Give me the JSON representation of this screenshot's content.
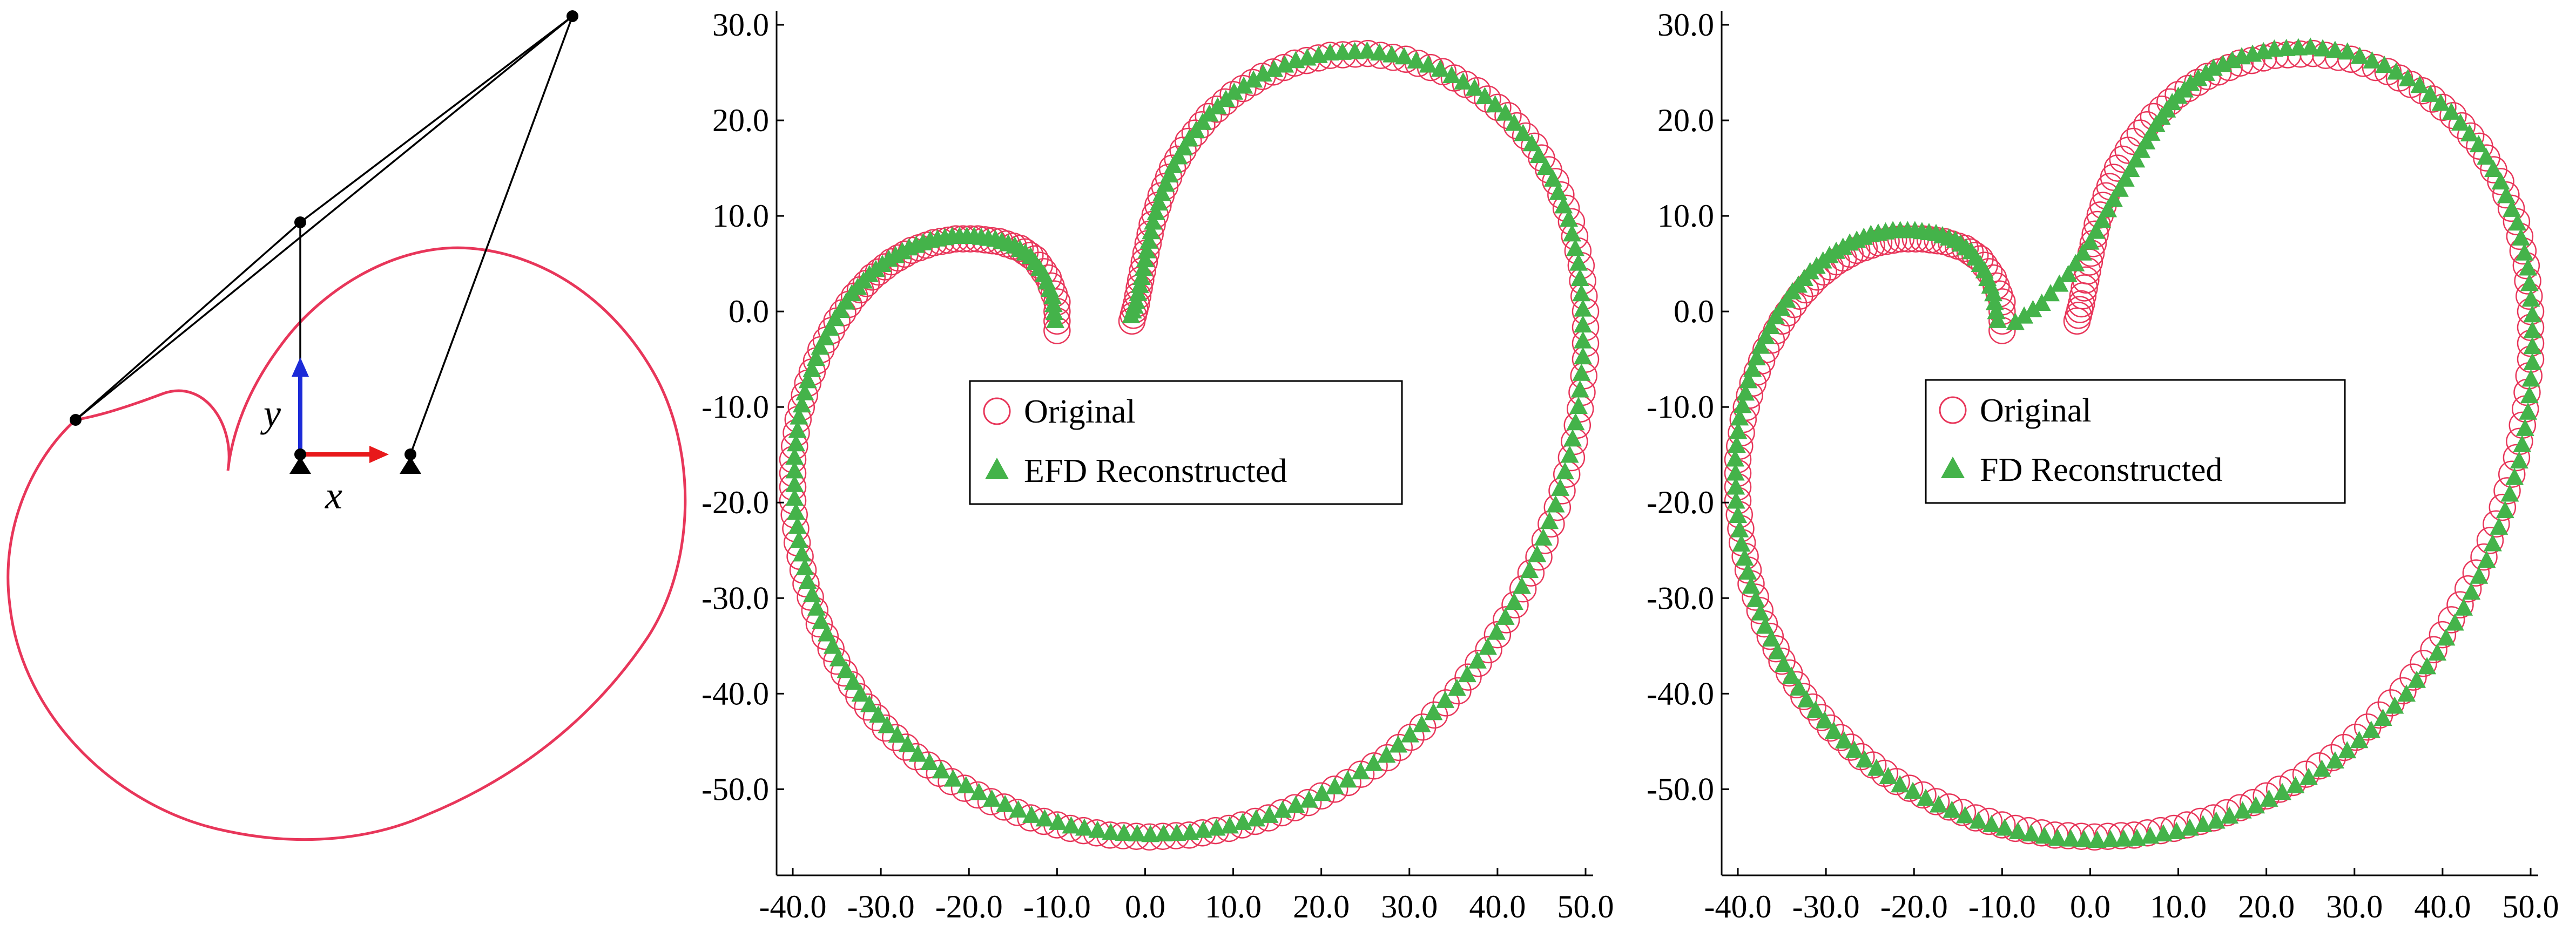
{
  "colors": {
    "original": "#e8365a",
    "reconstructed": "#44b34a",
    "axis": "#000000",
    "frame_x": "#e8191b",
    "frame_y": "#1c2bd8",
    "linkage": "#000000"
  },
  "mechanism": {
    "x_label": "x",
    "y_label": "y",
    "icons": [
      "ground-pivot-icon",
      "joint-icon",
      "coupler-point-icon"
    ]
  },
  "chart_data": [
    {
      "type": "scatter",
      "title": "",
      "xlabel": "",
      "ylabel": "",
      "xlim": [
        -40,
        50
      ],
      "ylim": [
        -58,
        30
      ],
      "xticks": [
        "-40.0",
        "-30.0",
        "-20.0",
        "-10.0",
        "0.0",
        "10.0",
        "20.0",
        "30.0",
        "40.0",
        "50.0"
      ],
      "yticks": [
        "30.0",
        "20.0",
        "10.0",
        "0.0",
        "-10.0",
        "-20.0",
        "-30.0",
        "-40.0",
        "-50.0"
      ],
      "legend_position": "center",
      "series": [
        {
          "name": "Original",
          "marker": "open-circle",
          "color": "#e8365a",
          "x": [
            -10.0,
            -10.0,
            -11.0,
            -12.5,
            -14.2,
            -16.5,
            -19.0,
            -21.5,
            -24.0,
            -26.5,
            -28.8,
            -31.0,
            -33.0,
            -35.0,
            -36.8,
            -38.3,
            -39.4,
            -40.0,
            -40.0,
            -39.5,
            -38.5,
            -37.0,
            -35.0,
            -32.5,
            -29.5,
            -26.0,
            -22.0,
            -17.5,
            -13.0,
            -8.5,
            -4.0,
            0.5,
            5.0,
            9.5,
            14.0,
            18.5,
            23.0,
            27.5,
            31.5,
            35.5,
            39.0,
            42.0,
            44.7,
            46.8,
            48.4,
            49.4,
            50.0,
            50.0,
            49.5,
            48.4,
            46.6,
            44.2,
            41.2,
            37.7,
            33.8,
            29.6,
            25.3,
            21.0,
            17.0,
            13.3,
            10.0,
            7.2,
            4.9,
            3.1,
            1.8,
            0.8,
            0.1,
            -0.5,
            -1.0,
            -1.5
          ],
          "y": [
            -2.0,
            1.0,
            3.5,
            5.5,
            6.6,
            7.3,
            7.6,
            7.6,
            7.2,
            6.4,
            5.2,
            3.6,
            1.6,
            -1.0,
            -4.0,
            -7.5,
            -11.3,
            -15.5,
            -19.8,
            -24.2,
            -28.5,
            -32.7,
            -36.6,
            -40.3,
            -43.6,
            -46.6,
            -49.2,
            -51.3,
            -53.0,
            -54.1,
            -54.8,
            -55.0,
            -54.8,
            -54.1,
            -53.0,
            -51.4,
            -49.3,
            -46.7,
            -43.5,
            -39.7,
            -35.4,
            -30.7,
            -25.7,
            -20.5,
            -15.3,
            -10.2,
            -5.0,
            0.0,
            4.8,
            9.4,
            13.6,
            17.3,
            20.5,
            23.1,
            25.1,
            26.4,
            27.0,
            26.8,
            26.0,
            24.6,
            22.7,
            20.4,
            17.8,
            15.0,
            12.1,
            9.1,
            6.1,
            3.3,
            0.8,
            -1.0
          ]
        },
        {
          "name": "EFD Reconstructed",
          "marker": "filled-triangle",
          "color": "#44b34a",
          "x": [
            -10.2,
            -10.5,
            -11.5,
            -13.0,
            -14.8,
            -17.0,
            -19.4,
            -21.9,
            -24.4,
            -26.8,
            -29.1,
            -31.3,
            -33.3,
            -35.2,
            -36.9,
            -38.3,
            -39.3,
            -39.8,
            -39.8,
            -39.3,
            -38.3,
            -36.8,
            -34.8,
            -32.3,
            -29.3,
            -25.8,
            -21.8,
            -17.4,
            -12.9,
            -8.4,
            -3.9,
            0.6,
            5.1,
            9.6,
            14.1,
            18.6,
            23.0,
            27.4,
            31.4,
            35.4,
            38.9,
            41.9,
            44.5,
            46.6,
            48.2,
            49.2,
            49.7,
            49.7,
            49.2,
            48.1,
            46.3,
            43.9,
            40.9,
            37.4,
            33.5,
            29.4,
            25.2,
            21.0,
            17.1,
            13.4,
            10.1,
            7.3,
            5.0,
            3.2,
            1.9,
            0.9,
            0.2,
            -0.4,
            -1.0,
            -1.6
          ],
          "y": [
            -1.0,
            1.5,
            3.8,
            5.7,
            6.8,
            7.5,
            7.8,
            7.8,
            7.4,
            6.6,
            5.4,
            3.8,
            1.8,
            -0.8,
            -3.8,
            -7.3,
            -11.1,
            -15.3,
            -19.6,
            -24.0,
            -28.3,
            -32.5,
            -36.4,
            -40.1,
            -43.4,
            -46.4,
            -49.0,
            -51.1,
            -52.8,
            -53.9,
            -54.6,
            -54.8,
            -54.6,
            -53.9,
            -52.8,
            -51.2,
            -49.1,
            -46.5,
            -43.3,
            -39.5,
            -35.2,
            -30.5,
            -25.5,
            -20.3,
            -15.1,
            -10.0,
            -4.8,
            0.2,
            5.0,
            9.6,
            13.8,
            17.5,
            20.7,
            23.3,
            25.3,
            26.6,
            27.2,
            27.0,
            26.2,
            24.8,
            22.9,
            20.6,
            18.0,
            15.2,
            12.3,
            9.3,
            6.3,
            3.5,
            1.0,
            -0.5
          ]
        }
      ]
    },
    {
      "type": "scatter",
      "title": "",
      "xlabel": "",
      "ylabel": "",
      "xlim": [
        -40,
        50
      ],
      "ylim": [
        -58,
        30
      ],
      "xticks": [
        "-40.0",
        "-30.0",
        "-20.0",
        "-10.0",
        "0.0",
        "10.0",
        "20.0",
        "30.0",
        "40.0",
        "50.0"
      ],
      "yticks": [
        "30.0",
        "20.0",
        "10.0",
        "0.0",
        "-10.0",
        "-20.0",
        "-30.0",
        "-40.0",
        "-50.0"
      ],
      "legend_position": "center",
      "series": [
        {
          "name": "Original",
          "marker": "open-circle",
          "color": "#e8365a",
          "x": [
            -10.0,
            -10.0,
            -11.0,
            -12.5,
            -14.2,
            -16.5,
            -19.0,
            -21.5,
            -24.0,
            -26.5,
            -28.8,
            -31.0,
            -33.0,
            -35.0,
            -36.8,
            -38.3,
            -39.4,
            -40.0,
            -40.0,
            -39.5,
            -38.5,
            -37.0,
            -35.0,
            -32.5,
            -29.5,
            -26.0,
            -22.0,
            -17.5,
            -13.0,
            -8.5,
            -4.0,
            0.5,
            5.0,
            9.5,
            14.0,
            18.5,
            23.0,
            27.5,
            31.5,
            35.5,
            39.0,
            42.0,
            44.7,
            46.8,
            48.4,
            49.4,
            50.0,
            50.0,
            49.5,
            48.4,
            46.6,
            44.2,
            41.2,
            37.7,
            33.8,
            29.6,
            25.3,
            21.0,
            17.0,
            13.3,
            10.0,
            7.2,
            4.9,
            3.1,
            1.8,
            0.8,
            0.1,
            -0.5,
            -1.0,
            -1.5
          ],
          "y": [
            -2.0,
            1.0,
            3.5,
            5.5,
            6.6,
            7.3,
            7.6,
            7.6,
            7.2,
            6.4,
            5.2,
            3.6,
            1.6,
            -1.0,
            -4.0,
            -7.5,
            -11.3,
            -15.5,
            -19.8,
            -24.2,
            -28.5,
            -32.7,
            -36.6,
            -40.3,
            -43.6,
            -46.6,
            -49.2,
            -51.3,
            -53.0,
            -54.1,
            -54.8,
            -55.0,
            -54.8,
            -54.1,
            -53.0,
            -51.4,
            -49.3,
            -46.7,
            -43.5,
            -39.7,
            -35.4,
            -30.7,
            -25.7,
            -20.5,
            -15.3,
            -10.2,
            -5.0,
            0.0,
            4.8,
            9.4,
            13.6,
            17.3,
            20.5,
            23.1,
            25.1,
            26.4,
            27.0,
            26.8,
            26.0,
            24.6,
            22.7,
            20.4,
            17.8,
            15.0,
            12.1,
            9.1,
            6.1,
            3.3,
            0.8,
            -1.0
          ]
        },
        {
          "name": "FD Reconstructed",
          "marker": "filled-triangle",
          "color": "#44b34a",
          "x": [
            -10.5,
            -11.0,
            -12.0,
            -13.5,
            -15.3,
            -17.5,
            -19.9,
            -22.4,
            -24.9,
            -27.3,
            -29.6,
            -31.8,
            -33.8,
            -35.7,
            -37.4,
            -38.8,
            -39.8,
            -40.3,
            -40.2,
            -39.6,
            -38.5,
            -36.9,
            -34.8,
            -32.2,
            -29.1,
            -25.6,
            -21.6,
            -17.2,
            -12.7,
            -8.2,
            -3.7,
            0.8,
            5.3,
            9.8,
            14.3,
            18.8,
            23.3,
            27.8,
            31.9,
            35.9,
            39.4,
            42.4,
            45.0,
            47.1,
            48.7,
            49.7,
            50.2,
            50.2,
            49.7,
            48.5,
            46.6,
            44.1,
            41.0,
            37.4,
            33.4,
            29.2,
            25.0,
            20.9,
            17.2,
            14.0,
            11.4,
            9.3,
            7.5,
            5.8,
            4.0,
            2.0,
            0.0,
            -2.5,
            -5.5,
            -8.5
          ],
          "y": [
            -1.0,
            1.8,
            4.2,
            6.2,
            7.4,
            8.1,
            8.4,
            8.4,
            8.0,
            7.1,
            5.8,
            4.1,
            2.0,
            -0.6,
            -3.7,
            -7.3,
            -11.2,
            -15.5,
            -19.9,
            -24.4,
            -28.8,
            -33.0,
            -37.0,
            -40.7,
            -44.0,
            -47.0,
            -49.6,
            -51.7,
            -53.4,
            -54.5,
            -55.2,
            -55.4,
            -55.2,
            -54.5,
            -53.4,
            -51.8,
            -49.7,
            -47.1,
            -43.9,
            -40.1,
            -35.8,
            -31.1,
            -26.1,
            -20.9,
            -15.7,
            -10.6,
            -5.4,
            -0.4,
            4.5,
            9.2,
            13.5,
            17.4,
            20.8,
            23.6,
            25.7,
            27.1,
            27.6,
            27.4,
            26.6,
            25.4,
            23.8,
            21.8,
            19.5,
            16.8,
            13.8,
            10.6,
            7.2,
            3.8,
            0.8,
            -1.2
          ]
        }
      ]
    }
  ]
}
